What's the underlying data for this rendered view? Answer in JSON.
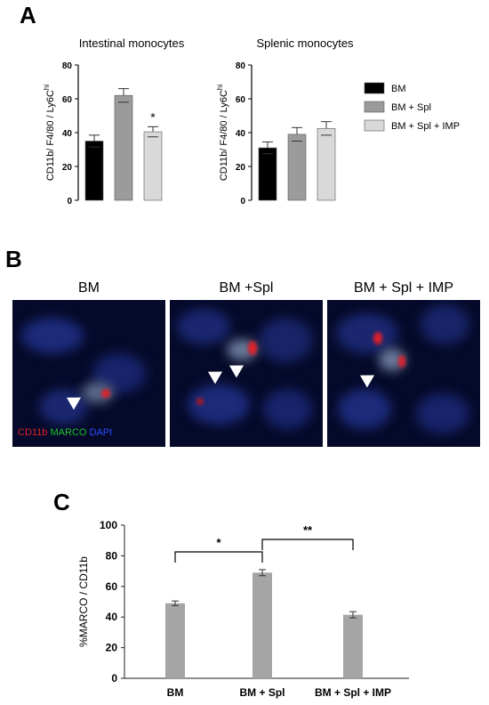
{
  "panels": {
    "a": "A",
    "b": "B",
    "c": "C"
  },
  "panel_b": {
    "titles": [
      "BM",
      "BM +Spl",
      "BM + Spl + IMP"
    ],
    "stain_legend": [
      {
        "label": "CD11b",
        "color": "#e0212a"
      },
      {
        "label": "MARCO",
        "color": "#22c02c"
      },
      {
        "label": "DAPI",
        "color": "#2b4cff"
      }
    ]
  },
  "legend_a": [
    {
      "label": "BM",
      "color": "#000000"
    },
    {
      "label": "BM + Spl",
      "color": "#9b9b9b"
    },
    {
      "label": "BM + Spl + IMP",
      "color": "#d9d9d9"
    }
  ],
  "chart_data": [
    {
      "type": "bar",
      "title": "Intestinal monocytes",
      "ylabel": "CD11b/ F4/80 / Ly6C^hi",
      "categories": [
        "BM",
        "BM + Spl",
        "BM + Spl + IMP"
      ],
      "values": [
        35,
        62,
        40.5
      ],
      "errors": [
        3.5,
        4,
        3
      ],
      "colors": [
        "#000000",
        "#9b9b9b",
        "#d9d9d9"
      ],
      "annotations": [
        "",
        "",
        "*"
      ],
      "ylim": [
        0,
        80
      ],
      "yticks": [
        0,
        20,
        40,
        60,
        80
      ]
    },
    {
      "type": "bar",
      "title": "Splenic monocytes",
      "ylabel": "CD11b/ F4/80 / Ly6C^hi",
      "categories": [
        "BM",
        "BM + Spl",
        "BM + Spl + IMP"
      ],
      "values": [
        31,
        39,
        42.5
      ],
      "errors": [
        3.5,
        4,
        4
      ],
      "colors": [
        "#000000",
        "#9b9b9b",
        "#d9d9d9"
      ],
      "annotations": [
        "",
        "",
        ""
      ],
      "ylim": [
        0,
        80
      ],
      "yticks": [
        0,
        20,
        40,
        60,
        80
      ]
    },
    {
      "type": "bar",
      "title": "",
      "ylabel": "%MARCO / CD11b",
      "categories": [
        "BM",
        "BM + Spl",
        "BM + Spl + IMP"
      ],
      "values": [
        49,
        69,
        41.5
      ],
      "errors": [
        1.5,
        2,
        2
      ],
      "colors": [
        "#a5a5a5",
        "#a5a5a5",
        "#a5a5a5"
      ],
      "ylim": [
        0,
        100
      ],
      "yticks": [
        0,
        20,
        40,
        60,
        80,
        100
      ],
      "significance": [
        {
          "from": 0,
          "to": 1,
          "label": "*"
        },
        {
          "from": 1,
          "to": 2,
          "label": "**"
        }
      ]
    }
  ]
}
